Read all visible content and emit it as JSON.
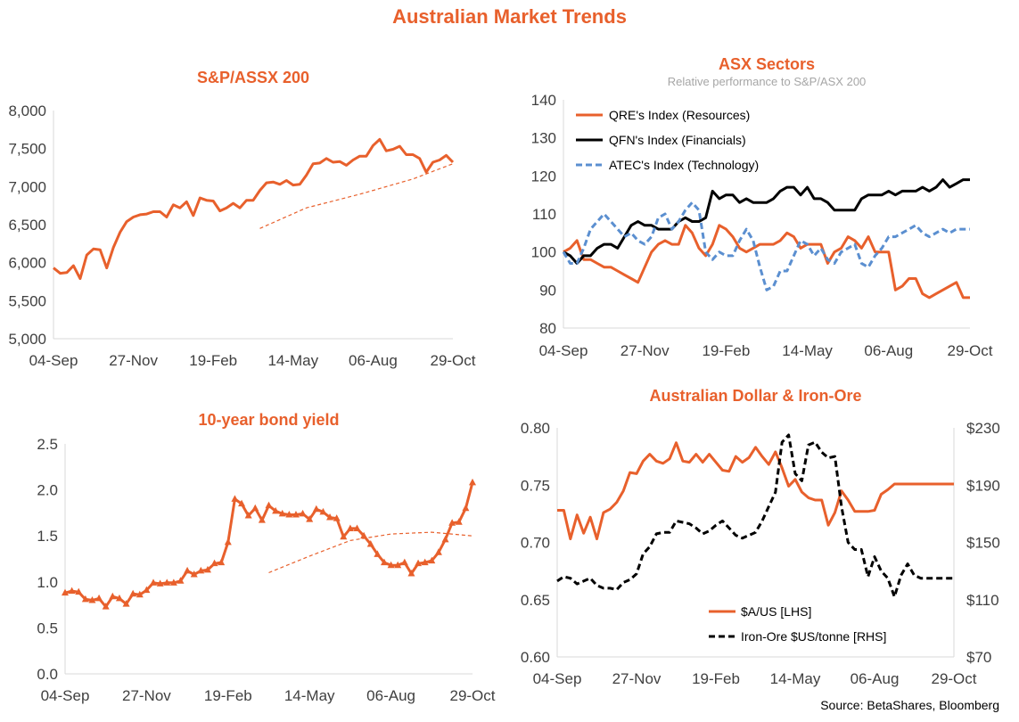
{
  "title": "Australian Market Trends",
  "source": "Source: BetaShares, Bloomberg",
  "colors": {
    "orange": "#e8602c",
    "black": "#000000",
    "blue": "#5b8fd0",
    "axis": "#d9d9d9"
  },
  "chart_data": [
    {
      "type": "line",
      "title": "S&P/ASSX 200",
      "x_ticks": [
        "04-Sep",
        "27-Nov",
        "19-Feb",
        "14-May",
        "06-Aug",
        "29-Oct"
      ],
      "y_ticks": [
        "5,000",
        "5,500",
        "6,000",
        "6,500",
        "7,000",
        "7,500",
        "8,000"
      ],
      "ylim": [
        5000,
        8000
      ],
      "x_range": [
        0,
        60
      ],
      "grid": false,
      "series": [
        {
          "style": "solid",
          "color": "#e8602c",
          "x": [
            0,
            1,
            2,
            3,
            4,
            5,
            6,
            7,
            8,
            9,
            10,
            11,
            12,
            13,
            14,
            15,
            16,
            17,
            18,
            19,
            20,
            21,
            22,
            23,
            24,
            25,
            26,
            27,
            28,
            29,
            30,
            31,
            32,
            33,
            34,
            35,
            36,
            37,
            38,
            39,
            40,
            41,
            42,
            43,
            44,
            45,
            46,
            47,
            48,
            49,
            50,
            51,
            52,
            53,
            54,
            55,
            56,
            57,
            58,
            59,
            60
          ],
          "values": [
            5930,
            5860,
            5870,
            5960,
            5790,
            6100,
            6180,
            6170,
            5930,
            6200,
            6400,
            6540,
            6600,
            6630,
            6640,
            6670,
            6670,
            6600,
            6760,
            6720,
            6800,
            6620,
            6850,
            6820,
            6810,
            6680,
            6720,
            6780,
            6720,
            6820,
            6820,
            6950,
            7050,
            7060,
            7030,
            7080,
            7020,
            7030,
            7150,
            7300,
            7310,
            7370,
            7320,
            7330,
            7280,
            7350,
            7400,
            7400,
            7540,
            7620,
            7470,
            7490,
            7530,
            7420,
            7420,
            7370,
            7190,
            7320,
            7350,
            7410,
            7320
          ]
        },
        {
          "style": "dashed-trend",
          "color": "#e8602c",
          "x": [
            31,
            38,
            46,
            54,
            60
          ],
          "values": [
            6450,
            6720,
            6900,
            7100,
            7300
          ]
        }
      ]
    },
    {
      "type": "line",
      "title": "ASX Sectors",
      "subtitle": "Relative performance to S&P/ASX 200",
      "x_ticks": [
        "04-Sep",
        "27-Nov",
        "19-Feb",
        "14-May",
        "06-Aug",
        "29-Oct"
      ],
      "y_ticks": [
        "80",
        "90",
        "100",
        "110",
        "120",
        "130",
        "140"
      ],
      "ylim": [
        80,
        140
      ],
      "x_range": [
        0,
        60
      ],
      "grid": false,
      "legend": "top-left",
      "series": [
        {
          "name": "QRE's Index (Resources)",
          "style": "solid",
          "color": "#e8602c",
          "x": [
            0,
            1,
            2,
            3,
            4,
            5,
            6,
            7,
            8,
            9,
            10,
            11,
            12,
            13,
            14,
            15,
            16,
            17,
            18,
            19,
            20,
            21,
            22,
            23,
            24,
            25,
            26,
            27,
            28,
            29,
            30,
            31,
            32,
            33,
            34,
            35,
            36,
            37,
            38,
            39,
            40,
            41,
            42,
            43,
            44,
            45,
            46,
            47,
            48,
            49,
            50,
            51,
            52,
            53,
            54,
            55,
            56,
            57,
            58,
            59,
            60
          ],
          "values": [
            100,
            101,
            103,
            98,
            98,
            97,
            96,
            96,
            95,
            94,
            93,
            92,
            96,
            100,
            102,
            103,
            102,
            102,
            107,
            105,
            101,
            99,
            102,
            107,
            106,
            104,
            101,
            100,
            101,
            102,
            102,
            102,
            103,
            105,
            104,
            101,
            102,
            102,
            102,
            97,
            100,
            101,
            104,
            103,
            101,
            104,
            100,
            100,
            100,
            90,
            91,
            93,
            93,
            89,
            88,
            89,
            90,
            91,
            92,
            88,
            88
          ]
        },
        {
          "name": "QFN's Index (Financials)",
          "style": "solid",
          "color": "#000000",
          "x": [
            0,
            1,
            2,
            3,
            4,
            5,
            6,
            7,
            8,
            9,
            10,
            11,
            12,
            13,
            14,
            15,
            16,
            17,
            18,
            19,
            20,
            21,
            22,
            23,
            24,
            25,
            26,
            27,
            28,
            29,
            30,
            31,
            32,
            33,
            34,
            35,
            36,
            37,
            38,
            39,
            40,
            41,
            42,
            43,
            44,
            45,
            46,
            47,
            48,
            49,
            50,
            51,
            52,
            53,
            54,
            55,
            56,
            57,
            58,
            59,
            60
          ],
          "values": [
            100,
            99,
            97,
            99,
            99,
            101,
            102,
            102,
            101,
            104,
            107,
            108,
            107,
            107,
            106,
            106,
            106,
            108,
            109,
            108,
            108,
            109,
            116,
            114,
            115,
            115,
            113,
            114,
            113,
            113,
            113,
            114,
            116,
            117,
            117,
            115,
            117,
            114,
            114,
            113,
            111,
            111,
            111,
            111,
            114,
            115,
            115,
            115,
            116,
            115,
            116,
            116,
            116,
            117,
            116,
            117,
            119,
            117,
            118,
            119,
            119
          ]
        },
        {
          "name": "ATEC's Index (Technology)",
          "style": "dashed",
          "color": "#5b8fd0",
          "x": [
            0,
            1,
            2,
            3,
            4,
            5,
            6,
            7,
            8,
            9,
            10,
            11,
            12,
            13,
            14,
            15,
            16,
            17,
            18,
            19,
            20,
            21,
            22,
            23,
            24,
            25,
            26,
            27,
            28,
            29,
            30,
            31,
            32,
            33,
            34,
            35,
            36,
            37,
            38,
            39,
            40,
            41,
            42,
            43,
            44,
            45,
            46,
            47,
            48,
            49,
            50,
            51,
            52,
            53,
            54,
            55,
            56,
            57,
            58,
            59,
            60
          ],
          "values": [
            100,
            97,
            97,
            101,
            106,
            108,
            110,
            108,
            106,
            104,
            105,
            103,
            102,
            104,
            109,
            110,
            106,
            108,
            111,
            113,
            111,
            100,
            98,
            100,
            99,
            99,
            103,
            106,
            103,
            96,
            90,
            91,
            95,
            95,
            99,
            103,
            102,
            99,
            101,
            98,
            97,
            100,
            101,
            102,
            97,
            96,
            99,
            101,
            104,
            104,
            105,
            106,
            107,
            105,
            104,
            105,
            106,
            105,
            106,
            106,
            106
          ]
        }
      ]
    },
    {
      "type": "line",
      "title": "10-year bond yield",
      "x_ticks": [
        "04-Sep",
        "27-Nov",
        "19-Feb",
        "14-May",
        "06-Aug",
        "29-Oct"
      ],
      "y_ticks": [
        "0.0",
        "0.5",
        "1.0",
        "1.5",
        "2.0",
        "2.5"
      ],
      "ylim": [
        0,
        2.5
      ],
      "x_range": [
        0,
        60
      ],
      "grid": false,
      "series": [
        {
          "style": "solid-triangles",
          "color": "#e8602c",
          "x": [
            0,
            1,
            2,
            3,
            4,
            5,
            6,
            7,
            8,
            9,
            10,
            11,
            12,
            13,
            14,
            15,
            16,
            17,
            18,
            19,
            20,
            21,
            22,
            23,
            24,
            25,
            26,
            27,
            28,
            29,
            30,
            31,
            32,
            33,
            34,
            35,
            36,
            37,
            38,
            39,
            40,
            41,
            42,
            43,
            44,
            45,
            46,
            47,
            48,
            49,
            50,
            51,
            52,
            53,
            54,
            55,
            56,
            57,
            58,
            59,
            60
          ],
          "values": [
            0.88,
            0.9,
            0.89,
            0.81,
            0.8,
            0.82,
            0.73,
            0.84,
            0.82,
            0.76,
            0.87,
            0.86,
            0.91,
            0.99,
            0.98,
            0.99,
            0.99,
            1.01,
            1.12,
            1.08,
            1.12,
            1.13,
            1.2,
            1.21,
            1.43,
            1.9,
            1.85,
            1.72,
            1.8,
            1.67,
            1.83,
            1.77,
            1.74,
            1.73,
            1.73,
            1.74,
            1.68,
            1.79,
            1.76,
            1.7,
            1.69,
            1.49,
            1.58,
            1.58,
            1.5,
            1.41,
            1.3,
            1.21,
            1.18,
            1.18,
            1.21,
            1.09,
            1.2,
            1.21,
            1.23,
            1.32,
            1.46,
            1.64,
            1.65,
            1.8,
            2.08
          ]
        },
        {
          "style": "dashed-trend",
          "color": "#e8602c",
          "x": [
            30,
            36,
            42,
            48,
            54,
            60
          ],
          "values": [
            1.1,
            1.28,
            1.45,
            1.52,
            1.54,
            1.5
          ]
        }
      ]
    },
    {
      "type": "line",
      "title": "Australian Dollar  & Iron-Ore",
      "x_ticks": [
        "04-Sep",
        "27-Nov",
        "19-Feb",
        "14-May",
        "06-Aug",
        "29-Oct"
      ],
      "y_ticks_left": [
        "0.60",
        "0.65",
        "0.70",
        "0.75",
        "0.80"
      ],
      "y_ticks_right": [
        "$70",
        "$110",
        "$150",
        "$190",
        "$230"
      ],
      "ylim_left": [
        0.6,
        0.8
      ],
      "ylim_right": [
        70,
        230
      ],
      "x_range": [
        0,
        60
      ],
      "grid": false,
      "legend": "bottom-center",
      "series": [
        {
          "name": "$A/US [LHS]",
          "style": "solid",
          "color": "#e8602c",
          "axis": "left",
          "x": [
            0,
            1,
            2,
            3,
            4,
            5,
            6,
            7,
            8,
            9,
            10,
            11,
            12,
            13,
            14,
            15,
            16,
            17,
            18,
            19,
            20,
            21,
            22,
            23,
            24,
            25,
            26,
            27,
            28,
            29,
            30,
            31,
            32,
            33,
            34,
            35,
            36,
            37,
            38,
            39,
            40,
            41,
            42,
            43,
            44,
            45,
            46,
            47,
            48,
            49,
            50,
            51,
            52,
            53,
            54,
            55,
            56,
            57,
            58,
            59,
            60
          ],
          "values": [
            0.728,
            0.728,
            0.703,
            0.724,
            0.708,
            0.722,
            0.703,
            0.726,
            0.729,
            0.735,
            0.745,
            0.761,
            0.76,
            0.771,
            0.777,
            0.771,
            0.769,
            0.773,
            0.787,
            0.771,
            0.77,
            0.777,
            0.77,
            0.777,
            0.77,
            0.763,
            0.762,
            0.775,
            0.77,
            0.774,
            0.783,
            0.775,
            0.768,
            0.779,
            0.765,
            0.749,
            0.755,
            0.744,
            0.739,
            0.737,
            0.737,
            0.715,
            0.726,
            0.745,
            0.737,
            0.727,
            0.727,
            0.727,
            0.728,
            0.742,
            0.746,
            0.751,
            0.751,
            0.751,
            0.751,
            0.751,
            0.751,
            0.751,
            0.751,
            0.751,
            0.751
          ]
        },
        {
          "name": "Iron-Ore $US/tonne [RHS]",
          "style": "dashed",
          "color": "#000000",
          "axis": "right",
          "x": [
            0,
            1,
            2,
            3,
            4,
            5,
            6,
            7,
            8,
            9,
            10,
            11,
            12,
            13,
            14,
            15,
            16,
            17,
            18,
            19,
            20,
            21,
            22,
            23,
            24,
            25,
            26,
            27,
            28,
            29,
            30,
            31,
            32,
            33,
            34,
            35,
            36,
            37,
            38,
            39,
            40,
            41,
            42,
            43,
            44,
            45,
            46,
            47,
            48,
            49,
            50,
            51,
            52,
            53,
            54,
            55,
            56,
            57,
            58,
            59,
            60
          ],
          "values": [
            123,
            126,
            125,
            121,
            123,
            125,
            120,
            118,
            118,
            117,
            122,
            124,
            128,
            142,
            147,
            156,
            157,
            157,
            165,
            164,
            163,
            160,
            156,
            158,
            162,
            165,
            160,
            155,
            153,
            155,
            157,
            165,
            175,
            185,
            220,
            225,
            198,
            193,
            218,
            220,
            213,
            209,
            210,
            175,
            150,
            145,
            145,
            126,
            140,
            130,
            125,
            112,
            127,
            135,
            127,
            125,
            125,
            125,
            125,
            125,
            125
          ]
        }
      ]
    }
  ]
}
